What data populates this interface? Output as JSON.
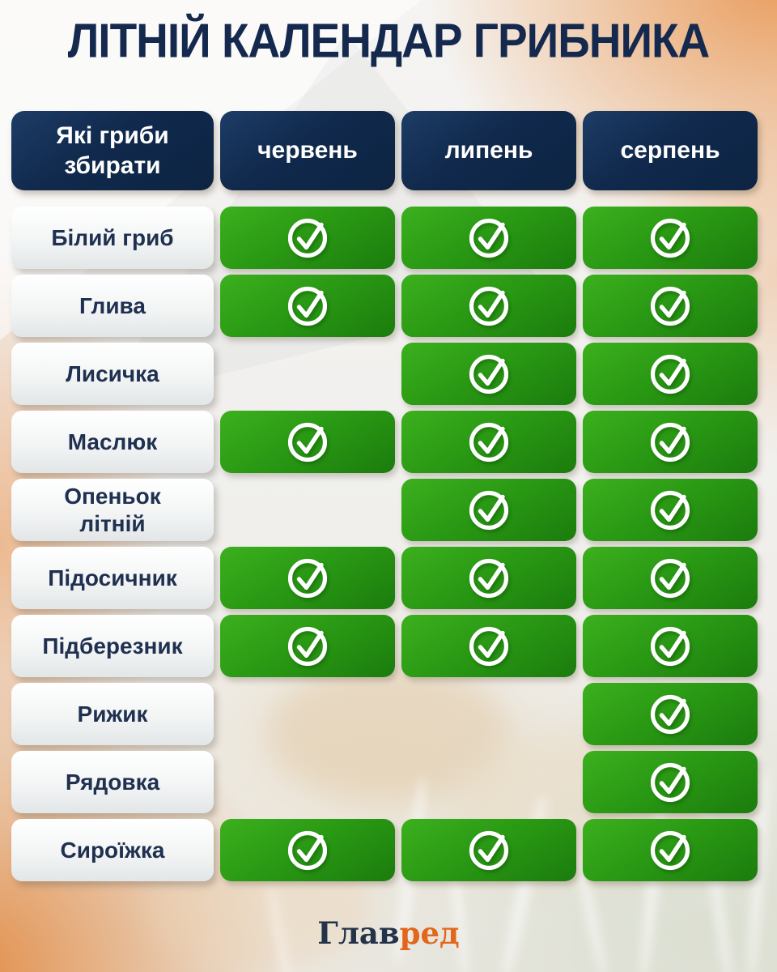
{
  "title": "ЛІТНІЙ КАЛЕНДАР ГРИБНИКА",
  "table": {
    "header": {
      "label_column": "Які гриби збирати",
      "months": [
        "червень",
        "липень",
        "серпень"
      ]
    },
    "rows": [
      {
        "mushroom": "Білий гриб",
        "checks": [
          true,
          true,
          true
        ]
      },
      {
        "mushroom": "Глива",
        "checks": [
          true,
          true,
          true
        ]
      },
      {
        "mushroom": "Лисичка",
        "checks": [
          false,
          true,
          true
        ]
      },
      {
        "mushroom": "Маслюк",
        "checks": [
          true,
          true,
          true
        ]
      },
      {
        "mushroom": "Опеньок літній",
        "checks": [
          false,
          true,
          true
        ]
      },
      {
        "mushroom": "Підосичник",
        "checks": [
          true,
          true,
          true
        ]
      },
      {
        "mushroom": "Підберезник",
        "checks": [
          true,
          true,
          true
        ]
      },
      {
        "mushroom": "Рижик",
        "checks": [
          false,
          false,
          true
        ]
      },
      {
        "mushroom": "Рядовка",
        "checks": [
          false,
          false,
          true
        ]
      },
      {
        "mushroom": "Сироїжка",
        "checks": [
          true,
          true,
          true
        ]
      }
    ],
    "check_icon": "check-circle-icon"
  },
  "footer": {
    "logo_dark": "Глав",
    "logo_orange": "ред"
  },
  "colors": {
    "title_navy": "#15294e",
    "header_navy": "#0d2442",
    "check_green": "#2a9a14",
    "logo_orange": "#e2661c"
  }
}
